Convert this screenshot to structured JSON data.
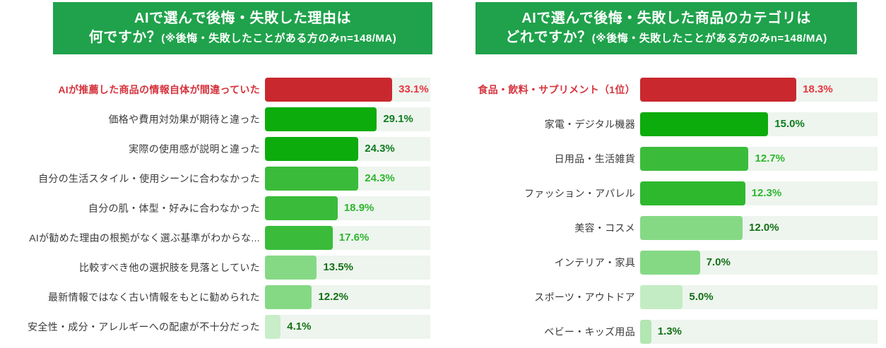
{
  "colors": {
    "banner_green": "#1fa24b",
    "track_background": "#edf5ee",
    "label_default": "#3a3a3a",
    "emphasis_red": "#d5333c",
    "page_background": "#ffffff"
  },
  "chart_data": [
    {
      "type": "bar",
      "orientation": "horizontal",
      "title": "AIで選んで後悔・失敗した理由は何ですか？(※後悔・失敗したことがある方のみn=148/MA)",
      "header": {
        "line1": "AIで選んで後悔・失敗した理由は",
        "line2_main": "何ですか？",
        "line2_note": "(※後悔・失敗したことがある方のみn=148/MA)"
      },
      "unit": "%",
      "sample_note": "n=148/MA",
      "axis_max": 43,
      "legend": "none",
      "grid": "off",
      "categories": [
        "AIが推薦した商品の情報自体が間違っていた",
        "価格や費用対効果が期待と違った",
        "実際の使用感が説明と違った",
        "自分の生活スタイル・使用シーンに合わなかった",
        "自分の肌・体型・好みに合わなかった",
        "AIが勧めた理由の根拠がなく選ぶ基準がわからな...",
        "比較すべき他の選択肢を見落としていた",
        "最新情報ではなく古い情報をもとに勧められた",
        "安全性・成分・アレルギーへの配慮が不十分だった"
      ],
      "values": [
        33.1,
        29.1,
        24.3,
        24.3,
        18.9,
        17.6,
        13.5,
        12.2,
        4.1
      ],
      "value_labels": [
        "33.1%",
        "29.1%",
        "24.3%",
        "24.3%",
        "18.9%",
        "17.6%",
        "13.5%",
        "12.2%",
        "4.1%"
      ],
      "bar_colors": [
        "#c9282e",
        "#0cac0c",
        "#0cac0c",
        "#3abc3a",
        "#3abc3a",
        "#3abc3a",
        "#85d985",
        "#85d985",
        "#c8edc8"
      ],
      "value_colors": [
        "#e8343d",
        "#0f7c20",
        "#0f7c20",
        "#2fb52f",
        "#2fb52f",
        "#2fb52f",
        "#156f15",
        "#156f15",
        "#156f15"
      ],
      "emphasized_row": 0
    },
    {
      "type": "bar",
      "orientation": "horizontal",
      "title": "AIで選んで後悔・失敗した商品のカテゴリはどれですか？(※後悔・失敗したことがある方のみn=148/MA)",
      "header": {
        "line1": "AIで選んで後悔・失敗した商品のカテゴリは",
        "line2_main": "どれですか？",
        "line2_note": "(※後悔・失敗したことがある方のみn=148/MA)"
      },
      "unit": "%",
      "sample_note": "n=148/MA",
      "axis_max": 27.8,
      "legend": "none",
      "grid": "off",
      "categories": [
        "食品・飲料・サプリメント（1位）",
        "家電・デジタル機器",
        "日用品・生活雑貨",
        "ファッション・アパレル",
        "美容・コスメ",
        "インテリア・家具",
        "スポーツ・アウトドア",
        "ベビー・キッズ用品"
      ],
      "values": [
        18.3,
        15.0,
        12.7,
        12.3,
        12.0,
        7.0,
        5.0,
        1.3
      ],
      "value_labels": [
        "18.3%",
        "15.0%",
        "12.7%",
        "12.3%",
        "12.0%",
        "7.0%",
        "5.0%",
        "1.3%"
      ],
      "bar_colors": [
        "#c9282e",
        "#0cac0c",
        "#3abc3a",
        "#2eb82e",
        "#85d985",
        "#85d985",
        "#c4ecc4",
        "#b2e6b2"
      ],
      "value_colors": [
        "#e8343d",
        "#0f7c20",
        "#2fb52f",
        "#2fb52f",
        "#156f15",
        "#156f15",
        "#156f15",
        "#156f15"
      ],
      "emphasized_row": 0
    }
  ]
}
